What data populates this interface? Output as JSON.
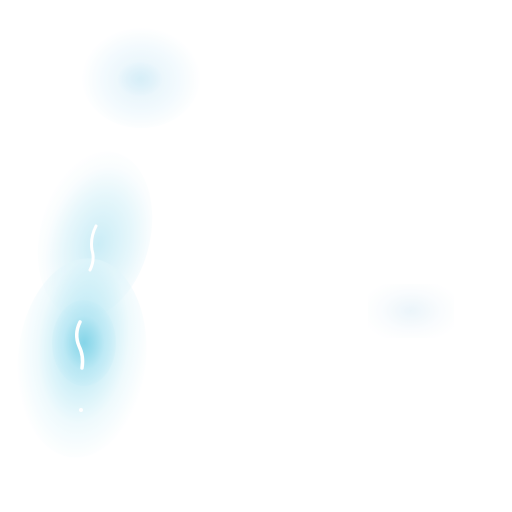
{
  "scene": {
    "background_color": "#ffffff",
    "glow_colors": {
      "light_cyan": "#c8ecf6",
      "mid_cyan": "#82d4e8",
      "pale_blue": "#e2f2fa",
      "streak_white": "#ffffff"
    },
    "elements": [
      "soft-glow-halo-top",
      "cyan-light-plume",
      "white-light-streaks",
      "faint-smudge-right"
    ]
  }
}
